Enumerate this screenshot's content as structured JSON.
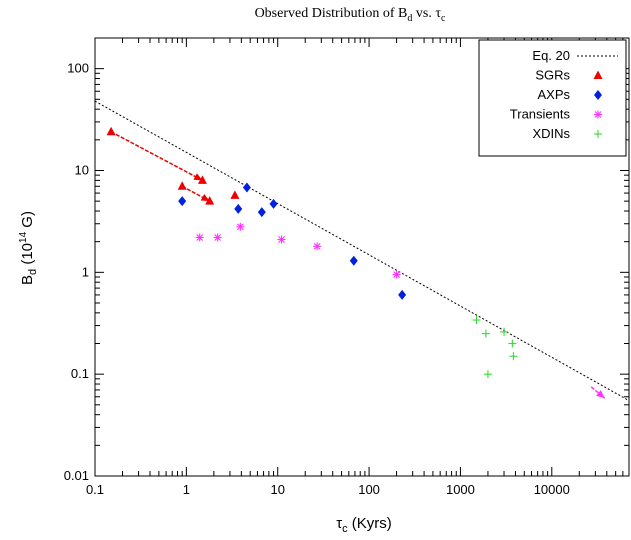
{
  "chart_data": {
    "type": "scatter",
    "title": {
      "main": "Observed Distribution of B",
      "sub1": "d",
      "mid": " vs. τ",
      "sub2": "c"
    },
    "xlabel": {
      "main": "τ",
      "sub": "c",
      "rest": " (Kyrs)"
    },
    "ylabel": {
      "main": "B",
      "sub": "d",
      "mid": " (10",
      "sup": "14",
      "rest": " G)"
    },
    "xscale": "log",
    "yscale": "log",
    "xlim": [
      0.1,
      70000
    ],
    "ylim": [
      0.01,
      200
    ],
    "xticks": [
      0.1,
      1,
      10,
      100,
      1000,
      10000
    ],
    "xtick_labels": [
      "0.1",
      "1",
      "10",
      "100",
      "1000",
      "10000"
    ],
    "yticks": [
      0.01,
      0.1,
      1,
      10,
      100
    ],
    "ytick_labels": [
      "0.01",
      "0.1",
      "1",
      "10",
      "100"
    ],
    "legend_position": "top-right",
    "line": {
      "name": "Eq. 20",
      "style": "dotted",
      "color": "#000000",
      "points": [
        [
          0.1,
          48
        ],
        [
          70000,
          0.055
        ]
      ]
    },
    "series": [
      {
        "name": "SGRs",
        "marker": "triangle",
        "color": "#ee0000",
        "points": [
          [
            0.15,
            24
          ],
          [
            1.5,
            8
          ],
          [
            0.9,
            7
          ],
          [
            1.8,
            5
          ],
          [
            3.4,
            5.7
          ]
        ]
      },
      {
        "name": "AXPs",
        "marker": "diamond",
        "color": "#0022dd",
        "points": [
          [
            0.9,
            5
          ],
          [
            3.7,
            4.2
          ],
          [
            4.6,
            6.8
          ],
          [
            6.7,
            3.9
          ],
          [
            9,
            4.7
          ],
          [
            68,
            1.3
          ],
          [
            230,
            0.6
          ]
        ]
      },
      {
        "name": "Transients",
        "marker": "asterisk",
        "color": "#ff33ff",
        "points": [
          [
            1.4,
            2.2
          ],
          [
            2.2,
            2.2
          ],
          [
            3.9,
            2.8
          ],
          [
            11,
            2.1
          ],
          [
            27,
            1.8
          ],
          [
            200,
            0.95
          ]
        ]
      },
      {
        "name": "XDINs",
        "marker": "plus",
        "color": "#33dd33",
        "points": [
          [
            1500,
            0.34
          ],
          [
            1900,
            0.25
          ],
          [
            3000,
            0.26
          ],
          [
            3700,
            0.2
          ],
          [
            3800,
            0.15
          ],
          [
            2000,
            0.1
          ]
        ]
      }
    ],
    "arrows": [
      {
        "color": "#ee0000",
        "from": [
          0.15,
          24
        ],
        "to": [
          1.5,
          8
        ]
      },
      {
        "color": "#ee0000",
        "from": [
          0.9,
          7
        ],
        "to": [
          1.8,
          5
        ]
      },
      {
        "color": "#ff33ff",
        "from": [
          27000,
          0.075
        ],
        "to": [
          38000,
          0.058
        ]
      }
    ]
  }
}
